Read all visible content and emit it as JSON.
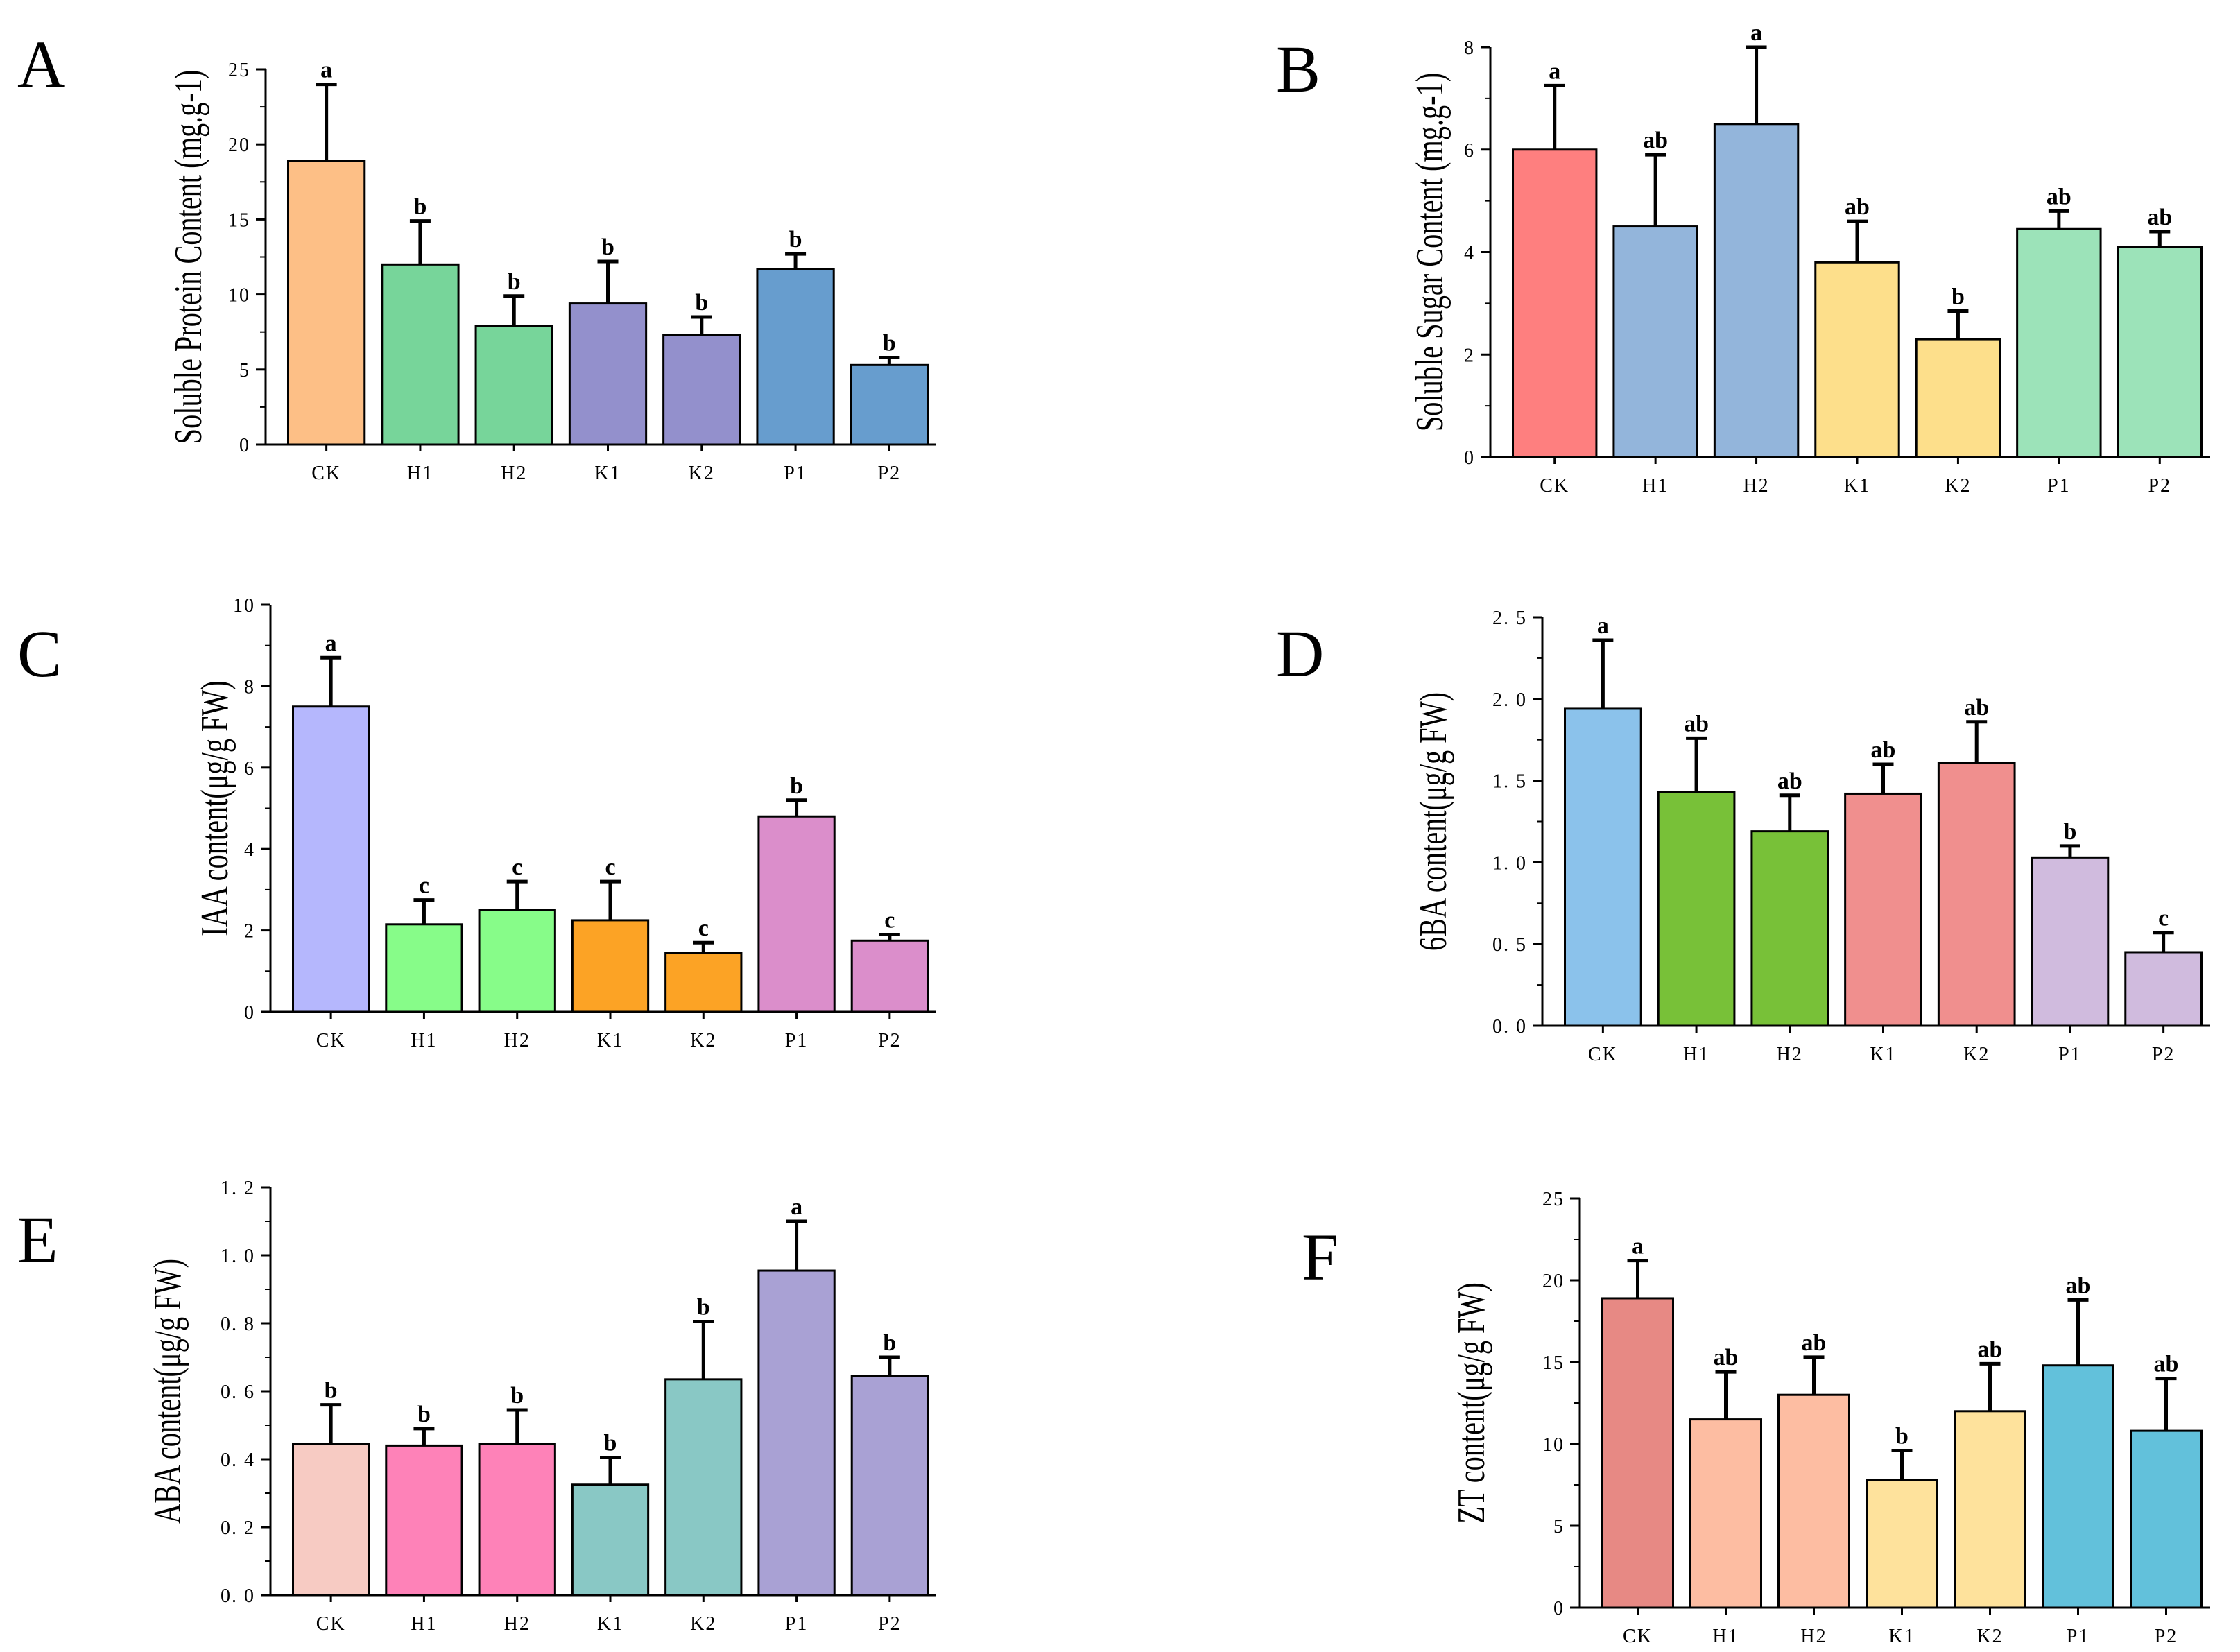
{
  "chart_data": [
    {
      "panel": "A",
      "type": "bar",
      "ylabel": "Soluble Protein Content (mg.g-1)",
      "categories": [
        "CK",
        "H1",
        "H2",
        "K1",
        "K2",
        "P1",
        "P2"
      ],
      "values": [
        18.9,
        12.0,
        7.9,
        9.4,
        7.3,
        11.7,
        5.3
      ],
      "errors": [
        5.1,
        2.9,
        2.0,
        2.8,
        1.2,
        1.0,
        0.5
      ],
      "labels": [
        "a",
        "b",
        "b",
        "b",
        "b",
        "b",
        "b"
      ],
      "colors": [
        "#fdbf86",
        "#77d59a",
        "#77d59a",
        "#9390cc",
        "#9390cc",
        "#679dce",
        "#679dce"
      ],
      "ylim": [
        0,
        25
      ],
      "yticks": [
        0,
        5,
        10,
        15,
        20,
        25
      ],
      "ytick_labels": [
        "0",
        "5",
        "10",
        "15",
        "20",
        "25"
      ]
    },
    {
      "panel": "B",
      "type": "bar",
      "ylabel": "Soluble Sugar Content (mg.g-1)",
      "categories": [
        "CK",
        "H1",
        "H2",
        "K1",
        "K2",
        "P1",
        "P2"
      ],
      "values": [
        6.0,
        4.5,
        6.5,
        3.8,
        2.3,
        4.45,
        4.1
      ],
      "errors": [
        1.25,
        1.4,
        1.5,
        0.8,
        0.55,
        0.35,
        0.3
      ],
      "labels": [
        "a",
        "ab",
        "a",
        "ab",
        "b",
        "ab",
        "ab"
      ],
      "colors": [
        "#fe7f7f",
        "#93b5db",
        "#93b5db",
        "#fddf8b",
        "#fddf8b",
        "#9ce3b9",
        "#9ce3b9"
      ],
      "ylim": [
        0,
        8
      ],
      "yticks": [
        0,
        2,
        4,
        6,
        8
      ],
      "ytick_labels": [
        "0",
        "2",
        "4",
        "6",
        "8"
      ]
    },
    {
      "panel": "C",
      "type": "bar",
      "ylabel": "IAA content(μg/g FW)",
      "categories": [
        "CK",
        "H1",
        "H2",
        "K1",
        "K2",
        "P1",
        "P2"
      ],
      "values": [
        7.5,
        2.15,
        2.5,
        2.25,
        1.45,
        4.8,
        1.75
      ],
      "errors": [
        1.2,
        0.6,
        0.7,
        0.95,
        0.25,
        0.4,
        0.15
      ],
      "labels": [
        "a",
        "c",
        "c",
        "c",
        "c",
        "b",
        "c"
      ],
      "colors": [
        "#b5b7fd",
        "#87fc89",
        "#87fc89",
        "#fca325",
        "#fca325",
        "#db8ecb",
        "#db8ecb"
      ],
      "ylim": [
        0,
        10
      ],
      "yticks": [
        0,
        2,
        4,
        6,
        8,
        10
      ],
      "ytick_labels": [
        "0",
        "2",
        "4",
        "6",
        "8",
        "10"
      ]
    },
    {
      "panel": "D",
      "type": "bar",
      "ylabel": "6BA content(μg/g FW)",
      "categories": [
        "CK",
        "H1",
        "H2",
        "K1",
        "K2",
        "P1",
        "P2"
      ],
      "values": [
        1.94,
        1.43,
        1.19,
        1.42,
        1.61,
        1.03,
        0.45
      ],
      "errors": [
        0.42,
        0.33,
        0.22,
        0.18,
        0.25,
        0.07,
        0.12
      ],
      "labels": [
        "a",
        "ab",
        "ab",
        "ab",
        "ab",
        "b",
        "c"
      ],
      "colors": [
        "#8bc2eb",
        "#78c138",
        "#78c138",
        "#f08f8e",
        "#f08f8e",
        "#d0bbde",
        "#d0bbde"
      ],
      "ylim": [
        0,
        2.5
      ],
      "yticks": [
        0,
        0.5,
        1.0,
        1.5,
        2.0,
        2.5
      ],
      "ytick_labels": [
        "0. 0",
        "0. 5",
        "1. 0",
        "1. 5",
        "2. 0",
        "2. 5"
      ]
    },
    {
      "panel": "E",
      "type": "bar",
      "ylabel": "ABA content(μg/g FW)",
      "categories": [
        "CK",
        "H1",
        "H2",
        "K1",
        "K2",
        "P1",
        "P2"
      ],
      "values": [
        0.445,
        0.44,
        0.445,
        0.325,
        0.635,
        0.955,
        0.645
      ],
      "errors": [
        0.115,
        0.05,
        0.1,
        0.08,
        0.17,
        0.145,
        0.055
      ],
      "labels": [
        "b",
        "b",
        "b",
        "b",
        "b",
        "a",
        "b"
      ],
      "colors": [
        "#f7cbc3",
        "#fe82b8",
        "#fe82b8",
        "#89c8c5",
        "#89c8c5",
        "#a9a1d4",
        "#a9a1d4"
      ],
      "ylim": [
        0,
        1.2
      ],
      "yticks": [
        0,
        0.2,
        0.4,
        0.6,
        0.8,
        1.0,
        1.2
      ],
      "ytick_labels": [
        "0. 0",
        "0. 2",
        "0. 4",
        "0. 6",
        "0. 8",
        "1. 0",
        "1. 2"
      ]
    },
    {
      "panel": "F",
      "type": "bar",
      "ylabel": "ZT content(μg/g FW)",
      "categories": [
        "CK",
        "H1",
        "H2",
        "K1",
        "K2",
        "P1",
        "P2"
      ],
      "values": [
        18.9,
        11.5,
        13.0,
        7.8,
        12.0,
        14.8,
        10.8
      ],
      "errors": [
        2.3,
        2.9,
        2.3,
        1.8,
        2.9,
        4.0,
        3.2
      ],
      "labels": [
        "a",
        "ab",
        "ab",
        "b",
        "ab",
        "ab",
        "ab"
      ],
      "colors": [
        "#e78984",
        "#fdbda2",
        "#fdbda2",
        "#fee29c",
        "#fee29c",
        "#62c1db",
        "#62c1db"
      ],
      "ylim": [
        0,
        25
      ],
      "yticks": [
        0,
        5,
        10,
        15,
        20,
        25
      ],
      "ytick_labels": [
        "0",
        "5",
        "10",
        "15",
        "20",
        "25"
      ]
    }
  ]
}
